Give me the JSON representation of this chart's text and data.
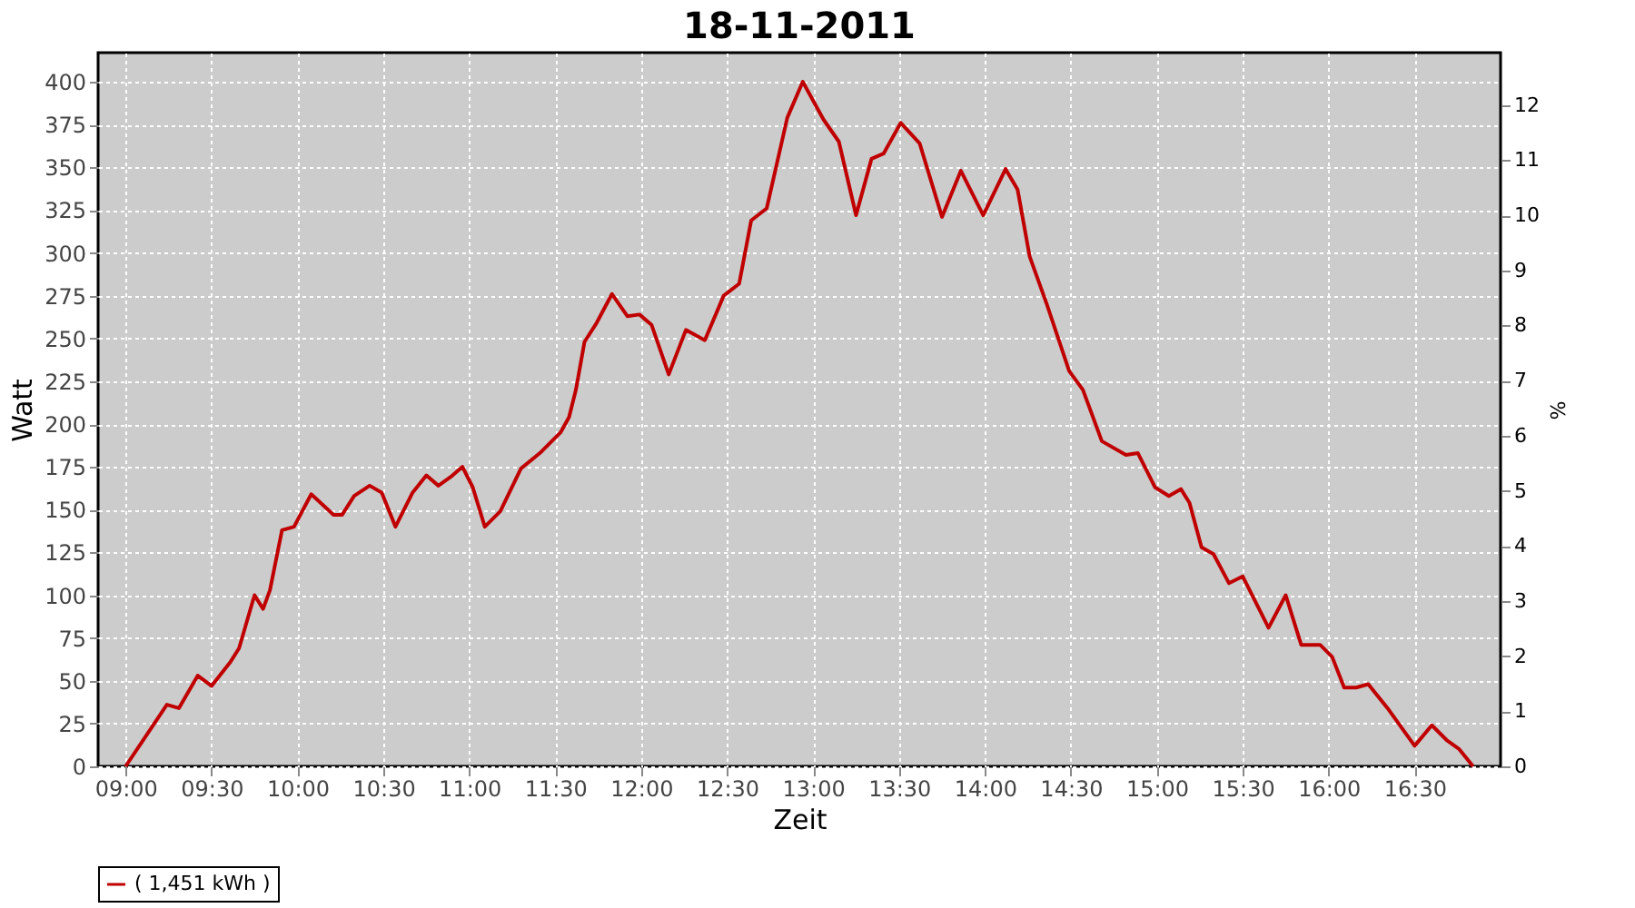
{
  "chart_data": {
    "type": "line",
    "title": "18-11-2011",
    "xlabel": "Zeit",
    "ylabel": "Watt",
    "y2label": "%",
    "xlim": [
      8.84,
      17.0
    ],
    "xticks": [
      {
        "value": 9,
        "label": "09:00"
      },
      {
        "value": 9.5,
        "label": "09:30"
      },
      {
        "value": 10,
        "label": "10:00"
      },
      {
        "value": 10.5,
        "label": "10:30"
      },
      {
        "value": 11,
        "label": "11:00"
      },
      {
        "value": 11.5,
        "label": "11:30"
      },
      {
        "value": 12,
        "label": "12:00"
      },
      {
        "value": 12.5,
        "label": "12:30"
      },
      {
        "value": 13,
        "label": "13:00"
      },
      {
        "value": 13.5,
        "label": "13:30"
      },
      {
        "value": 14,
        "label": "14:00"
      },
      {
        "value": 14.5,
        "label": "14:30"
      },
      {
        "value": 15,
        "label": "15:00"
      },
      {
        "value": 15.5,
        "label": "15:30"
      },
      {
        "value": 16,
        "label": "16:00"
      },
      {
        "value": 16.5,
        "label": "16:30"
      }
    ],
    "ylim": [
      0,
      417
    ],
    "yticks": [
      0,
      25,
      50,
      75,
      100,
      125,
      150,
      175,
      200,
      225,
      250,
      275,
      300,
      325,
      350,
      375,
      400
    ],
    "y2lim": [
      0,
      12.95
    ],
    "y2ticks": [
      0,
      1,
      2,
      3,
      4,
      5,
      6,
      7,
      8,
      9,
      10,
      11,
      12
    ],
    "grid": true,
    "legend": "bottom",
    "marker": "none",
    "line_style": "solid",
    "series": [
      {
        "name": "( 1,451 kWh )",
        "color": "#c00000",
        "x": [
          9.0,
          9.12,
          9.24,
          9.31,
          9.42,
          9.5,
          9.61,
          9.66,
          9.75,
          9.8,
          9.84,
          9.91,
          9.98,
          10.08,
          10.21,
          10.26,
          10.33,
          10.42,
          10.49,
          10.57,
          10.67,
          10.75,
          10.82,
          10.89,
          10.96,
          11.02,
          11.09,
          11.18,
          11.3,
          11.41,
          11.53,
          11.58,
          11.62,
          11.67,
          11.74,
          11.83,
          11.92,
          11.99,
          12.06,
          12.16,
          12.26,
          12.37,
          12.48,
          12.57,
          12.64,
          12.73,
          12.85,
          12.94,
          13.06,
          13.15,
          13.25,
          13.34,
          13.41,
          13.51,
          13.62,
          13.75,
          13.86,
          13.99,
          14.12,
          14.19,
          14.26,
          14.36,
          14.49,
          14.57,
          14.68,
          14.82,
          14.89,
          14.99,
          15.07,
          15.14,
          15.19,
          15.26,
          15.33,
          15.42,
          15.5,
          15.65,
          15.75,
          15.84,
          15.95,
          16.02,
          16.09,
          16.16,
          16.23,
          16.35,
          16.5,
          16.6,
          16.69,
          16.76,
          16.84
        ],
        "values": [
          0,
          18,
          36,
          34,
          53,
          47,
          61,
          69,
          100,
          92,
          103,
          138,
          140,
          159,
          147,
          147,
          158,
          164,
          160,
          140,
          160,
          170,
          164,
          169,
          175,
          163,
          140,
          149,
          174,
          183,
          195,
          204,
          220,
          248,
          259,
          276,
          263,
          264,
          258,
          229,
          255,
          249,
          275,
          282,
          319,
          326,
          379,
          400,
          378,
          365,
          322,
          355,
          358,
          376,
          364,
          321,
          348,
          322,
          349,
          337,
          298,
          270,
          231,
          220,
          190,
          182,
          183,
          163,
          158,
          162,
          154,
          128,
          124,
          107,
          111,
          81,
          100,
          71,
          71,
          64,
          46,
          46,
          48,
          33,
          12,
          24,
          15,
          10,
          0
        ]
      }
    ]
  }
}
